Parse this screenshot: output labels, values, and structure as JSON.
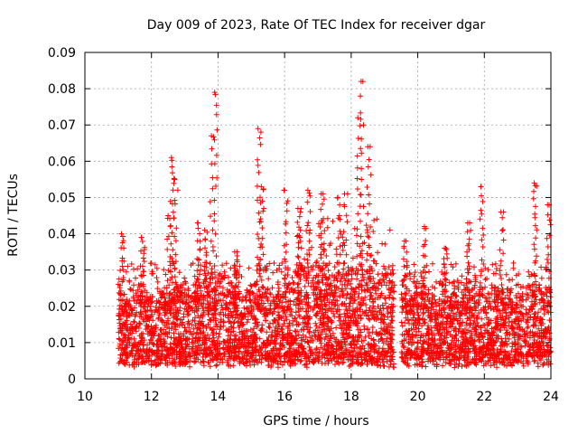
{
  "chart_data": {
    "type": "scatter",
    "title": "Day 009 of 2023, Rate Of TEC Index for receiver dgar",
    "xlabel": "GPS time / hours",
    "ylabel": "ROTI / TECUs",
    "xlim": [
      10,
      24
    ],
    "ylim": [
      0,
      0.09
    ],
    "xticks": [
      10,
      12,
      14,
      16,
      18,
      20,
      22,
      24
    ],
    "yticks": [
      0,
      0.01,
      0.02,
      0.03,
      0.04,
      0.05,
      0.06,
      0.07,
      0.08,
      0.09
    ],
    "xtick_labels": [
      "10",
      "12",
      "14",
      "16",
      "18",
      "20",
      "22",
      "24"
    ],
    "ytick_labels": [
      "0",
      "0.01",
      "0.02",
      "0.03",
      "0.04",
      "0.05",
      "0.06",
      "0.07",
      "0.08",
      "0.09"
    ],
    "grid": true,
    "marker": "+",
    "color": "#ff0000",
    "data_start_hour": 11.0,
    "data_gap_hours": [
      19.3,
      19.5
    ],
    "base_level": 0.012,
    "spikes": [
      {
        "x": 11.1,
        "y": 0.04
      },
      {
        "x": 11.7,
        "y": 0.039
      },
      {
        "x": 12.5,
        "y": 0.045
      },
      {
        "x": 12.6,
        "y": 0.061
      },
      {
        "x": 12.7,
        "y": 0.055
      },
      {
        "x": 13.4,
        "y": 0.043
      },
      {
        "x": 13.6,
        "y": 0.041
      },
      {
        "x": 13.8,
        "y": 0.067
      },
      {
        "x": 13.9,
        "y": 0.079
      },
      {
        "x": 14.5,
        "y": 0.035
      },
      {
        "x": 15.2,
        "y": 0.069
      },
      {
        "x": 15.3,
        "y": 0.053
      },
      {
        "x": 16.0,
        "y": 0.052
      },
      {
        "x": 16.4,
        "y": 0.047
      },
      {
        "x": 16.7,
        "y": 0.052
      },
      {
        "x": 17.1,
        "y": 0.051
      },
      {
        "x": 17.6,
        "y": 0.05
      },
      {
        "x": 17.8,
        "y": 0.051
      },
      {
        "x": 18.2,
        "y": 0.072
      },
      {
        "x": 18.3,
        "y": 0.082
      },
      {
        "x": 18.5,
        "y": 0.064
      },
      {
        "x": 19.6,
        "y": 0.038
      },
      {
        "x": 20.2,
        "y": 0.042
      },
      {
        "x": 20.8,
        "y": 0.036
      },
      {
        "x": 21.5,
        "y": 0.043
      },
      {
        "x": 21.9,
        "y": 0.053
      },
      {
        "x": 22.5,
        "y": 0.046
      },
      {
        "x": 23.5,
        "y": 0.054
      },
      {
        "x": 23.9,
        "y": 0.048
      }
    ]
  }
}
